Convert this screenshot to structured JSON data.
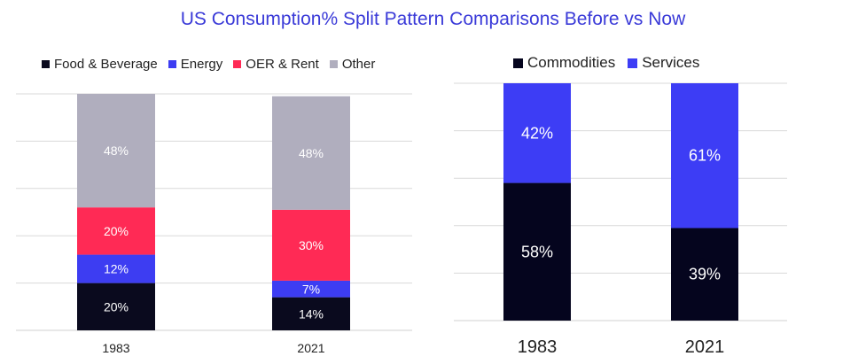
{
  "title": "US Consumption% Split Pattern Comparisons Before vs Now",
  "colors": {
    "title": "#3a3ad8",
    "food_beverage": "#0a0a1e",
    "energy": "#3d3df2",
    "oer_rent": "#ff2a55",
    "other": "#b0aebe",
    "commodities": "#05051e",
    "services": "#3d3df5",
    "grid": "#d9d9d9"
  },
  "chart_data": [
    {
      "type": "bar",
      "stacked": true,
      "title": "",
      "xlabel": "",
      "ylabel": "",
      "ylim": [
        0,
        100
      ],
      "grid": true,
      "legend_position": "top-left",
      "categories": [
        "1983",
        "2021"
      ],
      "series": [
        {
          "name": "Food & Beverage",
          "color": "#0a0a1e",
          "values": [
            20,
            14
          ],
          "labels": [
            "20%",
            "14%"
          ],
          "label_color": "#ffffff"
        },
        {
          "name": "Energy",
          "color": "#3d3df2",
          "values": [
            12,
            7
          ],
          "labels": [
            "12%",
            "7%"
          ],
          "label_color": "#ffffff"
        },
        {
          "name": "OER & Rent",
          "color": "#ff2a55",
          "values": [
            20,
            30
          ],
          "labels": [
            "20%",
            "30%"
          ],
          "label_color": "#ffffff"
        },
        {
          "name": "Other",
          "color": "#b0aebe",
          "values": [
            48,
            48
          ],
          "labels": [
            "48%",
            "48%"
          ],
          "label_color": "#ffffff"
        }
      ]
    },
    {
      "type": "bar",
      "stacked": true,
      "title": "",
      "xlabel": "",
      "ylabel": "",
      "ylim": [
        0,
        100
      ],
      "grid": true,
      "legend_position": "top-center",
      "categories": [
        "1983",
        "2021"
      ],
      "series": [
        {
          "name": "Commodities",
          "color": "#05051e",
          "values": [
            58,
            39
          ],
          "labels": [
            "58%",
            "39%"
          ],
          "label_color": "#ffffff"
        },
        {
          "name": "Services",
          "color": "#3d3df5",
          "values": [
            42,
            61
          ],
          "labels": [
            "42%",
            "61%"
          ],
          "label_color": "#ffffff"
        }
      ]
    }
  ]
}
